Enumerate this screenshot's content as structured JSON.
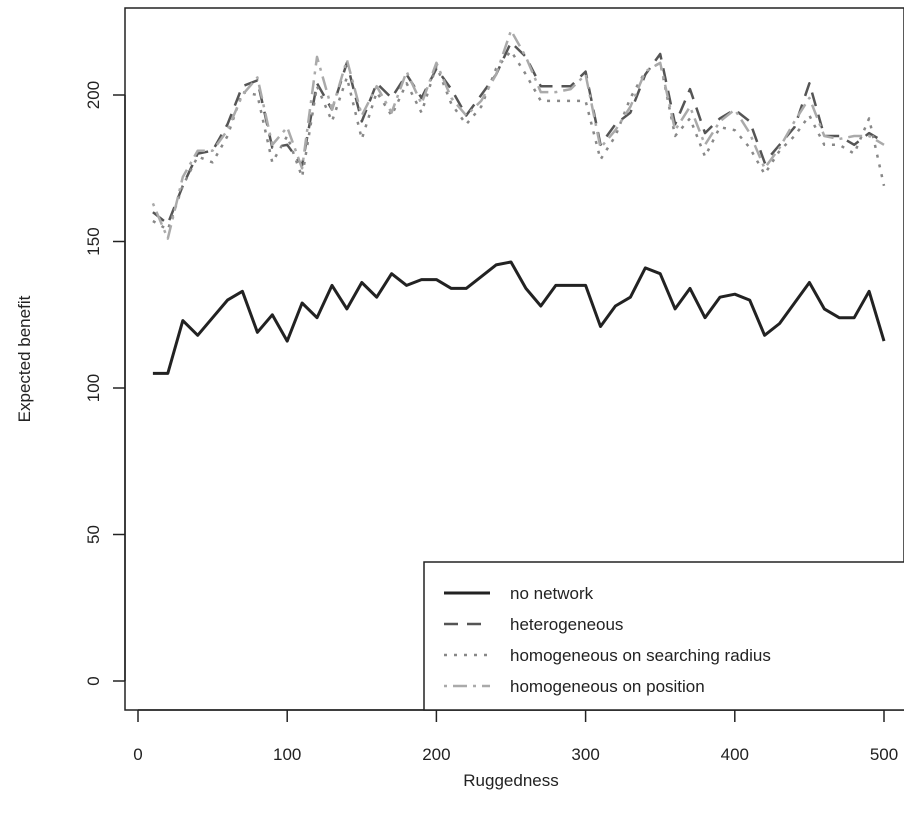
{
  "chart_data": {
    "type": "line",
    "title": "",
    "xlabel": "Ruggedness",
    "ylabel": "Expected benefit",
    "xlim": [
      0,
      520
    ],
    "ylim": [
      -10,
      230
    ],
    "x_ticks": [
      0,
      100,
      200,
      300,
      400,
      500
    ],
    "y_ticks": [
      0,
      50,
      100,
      150,
      200
    ],
    "grid": false,
    "legend_position": "bottom-right",
    "x": [
      10,
      20,
      30,
      40,
      50,
      60,
      70,
      80,
      90,
      100,
      110,
      120,
      130,
      140,
      150,
      160,
      170,
      180,
      190,
      200,
      210,
      220,
      230,
      240,
      250,
      260,
      270,
      280,
      290,
      300,
      310,
      320,
      330,
      340,
      350,
      360,
      370,
      380,
      390,
      400,
      410,
      420,
      430,
      440,
      450,
      460,
      470,
      480,
      490,
      500
    ],
    "series": [
      {
        "name": "no network",
        "style": "solid",
        "color": "#222222",
        "values": [
          105,
          105,
          123,
          118,
          124,
          130,
          133,
          119,
          125,
          116,
          129,
          124,
          135,
          127,
          136,
          131,
          139,
          135,
          137,
          137,
          134,
          134,
          138,
          142,
          143,
          134,
          128,
          135,
          135,
          135,
          121,
          128,
          131,
          141,
          139,
          127,
          134,
          124,
          131,
          132,
          130,
          118,
          122,
          129,
          136,
          127,
          124,
          124,
          133,
          116
        ]
      },
      {
        "name": "heterogeneous",
        "style": "dashed",
        "color": "#555555",
        "values": [
          160,
          156,
          169,
          180,
          181,
          190,
          203,
          205,
          182,
          183,
          176,
          204,
          195,
          211,
          191,
          204,
          199,
          207,
          199,
          209,
          202,
          193,
          200,
          207,
          218,
          213,
          203,
          203,
          203,
          208,
          183,
          190,
          194,
          207,
          214,
          190,
          202,
          187,
          192,
          195,
          191,
          177,
          183,
          189,
          204,
          186,
          186,
          183,
          187,
          184
        ]
      },
      {
        "name": "homogeneous on searching radius",
        "style": "dotted",
        "color": "#888888",
        "values": [
          157,
          154,
          169,
          179,
          177,
          186,
          201,
          200,
          177,
          186,
          172,
          203,
          191,
          206,
          185,
          201,
          193,
          204,
          194,
          210,
          197,
          190,
          196,
          209,
          215,
          207,
          198,
          198,
          198,
          198,
          178,
          186,
          199,
          208,
          211,
          186,
          192,
          179,
          189,
          188,
          182,
          173,
          181,
          186,
          193,
          183,
          183,
          180,
          192,
          169
        ]
      },
      {
        "name": "homogeneous on position",
        "style": "dashdot",
        "color": "#aaaaaa",
        "values": [
          163,
          151,
          172,
          181,
          181,
          188,
          200,
          206,
          183,
          189,
          175,
          213,
          195,
          212,
          193,
          203,
          194,
          208,
          197,
          211,
          199,
          193,
          198,
          207,
          222,
          213,
          201,
          201,
          202,
          207,
          182,
          188,
          196,
          208,
          211,
          188,
          196,
          183,
          191,
          195,
          187,
          175,
          182,
          191,
          199,
          186,
          185,
          186,
          186,
          183
        ]
      }
    ]
  }
}
